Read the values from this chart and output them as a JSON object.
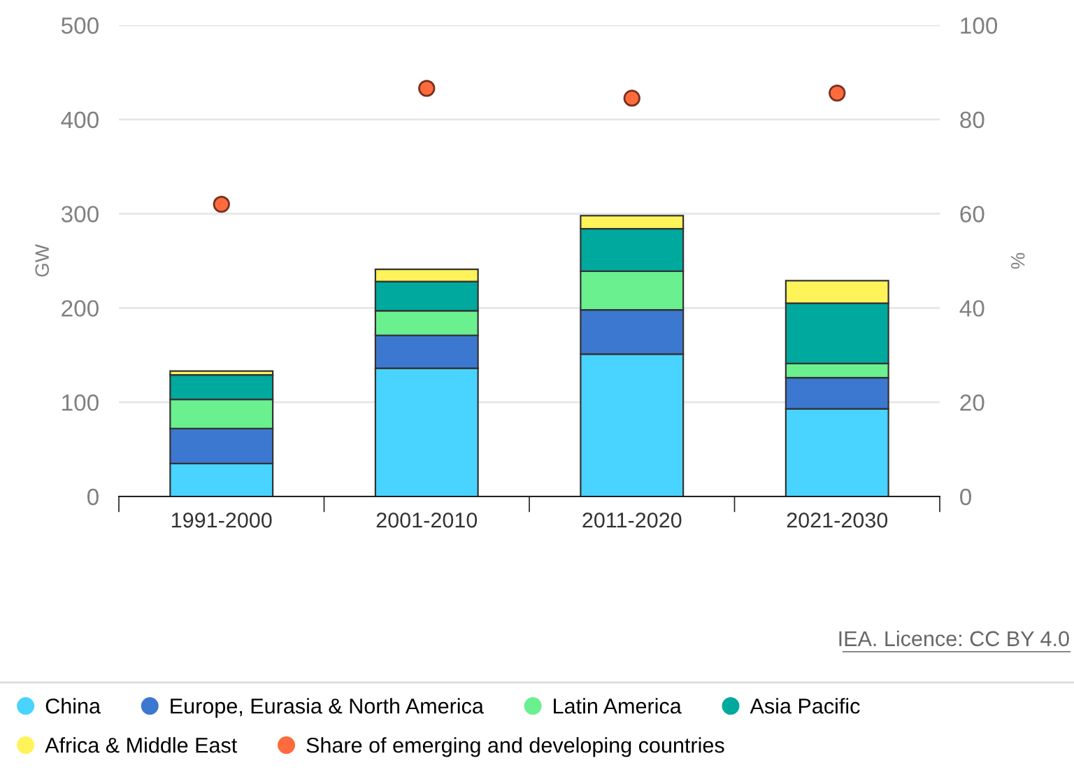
{
  "chart_data": {
    "type": "bar",
    "stacked": true,
    "categories": [
      "1991-2000",
      "2001-2010",
      "2011-2020",
      "2021-2030"
    ],
    "series": [
      {
        "name": "China",
        "color": "#49d3ff",
        "values": [
          35,
          136,
          151,
          93
        ]
      },
      {
        "name": "Europe, Eurasia & North America",
        "color": "#3d78d0",
        "values": [
          37,
          35,
          47,
          33
        ]
      },
      {
        "name": "Latin America",
        "color": "#6af08f",
        "values": [
          31,
          26,
          41,
          15
        ]
      },
      {
        "name": "Asia Pacific",
        "color": "#00a99d",
        "values": [
          26,
          31,
          45,
          64
        ]
      },
      {
        "name": "Africa & Middle East",
        "color": "#fff35a",
        "values": [
          4,
          13,
          14,
          24
        ]
      },
      {
        "name": "Share of emerging and developing countries",
        "color": "#ff6b3d",
        "type": "scatter",
        "axis": "y2",
        "marker": "circle",
        "values": [
          62,
          86.6,
          84.5,
          85.6
        ]
      }
    ],
    "ylabel": "GW",
    "y2label": "%",
    "ylim": [
      0,
      500
    ],
    "yticks": [
      0,
      100,
      200,
      300,
      400,
      500
    ],
    "y2lim": [
      0,
      100
    ],
    "y2ticks": [
      0,
      20,
      40,
      60,
      80,
      100
    ],
    "grid": "y",
    "legend": "bottom",
    "annotations": [
      "IEA. Licence: CC BY 4.0"
    ]
  }
}
